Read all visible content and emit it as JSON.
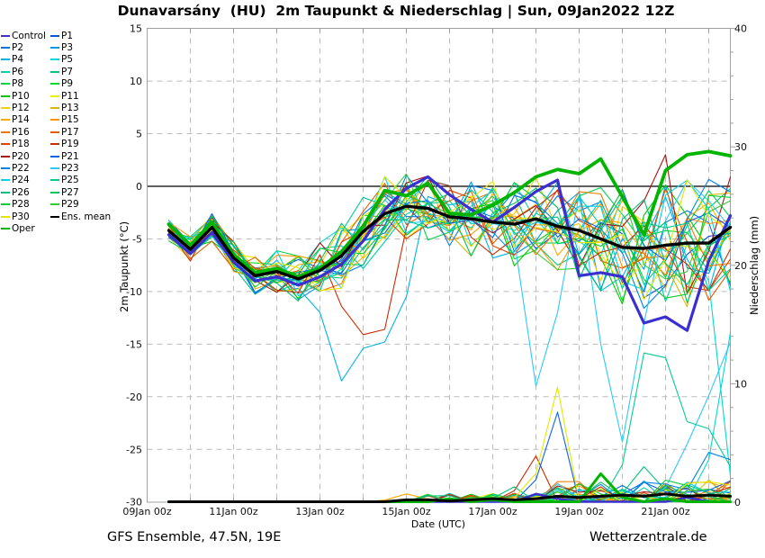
{
  "footer": {
    "model": "GFS Ensemble, 47.5N, 19E",
    "site": "Wetterzentrale.de"
  },
  "chart_data": {
    "type": "line",
    "title": "Dunavarsány  (HU)  2m Taupunkt & Niederschlag | Sun, 09Jan2022 12Z",
    "xlabel": "Date (UTC)",
    "ylabel_left": "2m Taupunkt (°C)",
    "ylabel_right": "Niederschlag (mm)",
    "x_axis": {
      "start_day": 0,
      "end_day": 13.5,
      "gridline_every_days": 1
    },
    "x_ticks": [
      {
        "day": 0,
        "label": "09Jan 00z"
      },
      {
        "day": 2,
        "label": "11Jan 00z"
      },
      {
        "day": 4,
        "label": "13Jan 00z"
      },
      {
        "day": 6,
        "label": "15Jan 00z"
      },
      {
        "day": 8,
        "label": "17Jan 00z"
      },
      {
        "day": 10,
        "label": "19Jan 00z"
      },
      {
        "day": 12,
        "label": "21Jan 00z"
      }
    ],
    "ylim_left": [
      -30,
      15
    ],
    "yticks_left": [
      15,
      10,
      5,
      0,
      -5,
      -10,
      -15,
      -20,
      -25,
      -30
    ],
    "ylim_right": [
      0,
      40
    ],
    "yticks_right": [
      40,
      30,
      20,
      10,
      0
    ],
    "zero_line_temp": 0,
    "grid_on": true,
    "legend_position": "top-left",
    "x_days": [
      0.5,
      1,
      1.5,
      2,
      2.5,
      3,
      3.5,
      4,
      4.5,
      5,
      5.5,
      6,
      6.5,
      7,
      7.5,
      8,
      8.5,
      9,
      9.5,
      10,
      10.5,
      11,
      11.5,
      12,
      12.5,
      13,
      13.5
    ],
    "series": {
      "mean": {
        "label": "Ens. mean",
        "color": "#000000",
        "width": 3.4,
        "dew": [
          -4.2,
          -6.0,
          -3.9,
          -6.8,
          -8.5,
          -8.1,
          -8.8,
          -8.0,
          -6.6,
          -4.3,
          -2.6,
          -1.9,
          -2.1,
          -2.9,
          -3.1,
          -3.4,
          -3.6,
          -3.1,
          -3.8,
          -4.2,
          -5.0,
          -5.8,
          -5.9,
          -5.6,
          -5.4,
          -5.4,
          -3.9
        ],
        "precip": [
          0,
          0,
          0,
          0,
          0,
          0,
          0,
          0,
          0,
          0,
          0,
          0.2,
          0.2,
          0.1,
          0.2,
          0.3,
          0.2,
          0.3,
          0.5,
          0.4,
          0.5,
          0.6,
          0.5,
          0.7,
          0.5,
          0.6,
          0.5
        ]
      },
      "oper": {
        "label": "Oper",
        "color": "#00b400",
        "width": 3.8,
        "dew": [
          -3.6,
          -5.6,
          -3.4,
          -6.5,
          -8.2,
          -7.8,
          -8.6,
          -7.8,
          -6.2,
          -3.8,
          -0.4,
          -0.9,
          0.3,
          -2.6,
          -2.7,
          -1.8,
          -0.6,
          0.9,
          1.6,
          1.2,
          2.6,
          -1.0,
          -4.6,
          1.5,
          3.0,
          3.3,
          2.9
        ],
        "precip": [
          0,
          0,
          0,
          0,
          0,
          0,
          0,
          0,
          0,
          0,
          0,
          0,
          0,
          0.3,
          0,
          0.2,
          0,
          0,
          0,
          0,
          2.4,
          0.4,
          0,
          0.3,
          0,
          0,
          0
        ]
      },
      "control": {
        "label": "Control",
        "color": "#3a2fd0",
        "width": 3.2,
        "dew": [
          -4.6,
          -6.4,
          -4.4,
          -7.2,
          -9.0,
          -8.6,
          -9.4,
          -8.6,
          -7.4,
          -5.2,
          -2.2,
          -0.2,
          0.9,
          -0.8,
          -2.2,
          -3.4,
          -2.0,
          -0.5,
          0.6,
          -8.5,
          -8.2,
          -8.6,
          -13.0,
          -12.4,
          -13.7,
          -7.1,
          -2.8
        ],
        "precip": [
          0,
          0,
          0,
          0,
          0,
          0,
          0,
          0,
          0,
          0,
          0,
          0,
          0,
          0,
          0,
          0,
          0,
          0.7,
          0.3,
          0,
          0,
          0,
          0,
          0,
          0.4,
          0,
          0
        ]
      }
    },
    "member_spread": [
      0.9,
      1.1,
      1.2,
      1.4,
      1.6,
      1.8,
      2.0,
      2.4,
      2.8,
      3.2,
      3.2,
      2.8,
      2.8,
      3.0,
      3.2,
      3.5,
      3.6,
      3.6,
      3.8,
      4.2,
      4.5,
      5.0,
      5.2,
      5.2,
      5.5,
      5.5,
      5.5
    ],
    "members": [
      {
        "name": "P1",
        "color": "#0a50e6"
      },
      {
        "name": "P2",
        "color": "#0572e0"
      },
      {
        "name": "P3",
        "color": "#0099e6"
      },
      {
        "name": "P4",
        "color": "#00b4e8",
        "dewfix": {
          "4": -12.0,
          "4.5": -18.5,
          "5": -15.4,
          "5.5": -14.8,
          "6": -10.5
        }
      },
      {
        "name": "P5",
        "color": "#00d8dc",
        "dewfix": {
          "13": -9.0,
          "13.5": -27.5
        },
        "spikes": [
          [
            13.5,
            14.3
          ]
        ]
      },
      {
        "name": "P6",
        "color": "#00d2a8"
      },
      {
        "name": "P7",
        "color": "#00c878",
        "spikes": [
          [
            11.5,
            3.0
          ],
          [
            12,
            1.0
          ]
        ]
      },
      {
        "name": "P8",
        "color": "#00d24a"
      },
      {
        "name": "P9",
        "color": "#06dc2a"
      },
      {
        "name": "P10",
        "color": "#00c800"
      },
      {
        "name": "P11",
        "color": "#eeee00"
      },
      {
        "name": "P12",
        "color": "#eed200"
      },
      {
        "name": "P13",
        "color": "#e0b400"
      },
      {
        "name": "P14",
        "color": "#ffa800",
        "spikes": [
          [
            6,
            0.7
          ]
        ]
      },
      {
        "name": "P15",
        "color": "#ff9600"
      },
      {
        "name": "P16",
        "color": "#f07800"
      },
      {
        "name": "P17",
        "color": "#e06000"
      },
      {
        "name": "P18",
        "color": "#e04400"
      },
      {
        "name": "P19",
        "color": "#cd2a00",
        "dewfix": {
          "4.5": -11.4,
          "5": -14.1,
          "5.5": -13.6
        },
        "spikes": [
          [
            9,
            3.9
          ]
        ]
      },
      {
        "name": "P20",
        "color": "#a81414",
        "dewfix": {
          "12": 3.0
        }
      },
      {
        "name": "P21",
        "color": "#0a64e6",
        "spikes": [
          [
            9.5,
            7.6
          ]
        ]
      },
      {
        "name": "P22",
        "color": "#0082e6",
        "spikes": [
          [
            13,
            4.2
          ],
          [
            13.5,
            3.6
          ]
        ]
      },
      {
        "name": "P23",
        "color": "#2cc8ff",
        "dewfix": {
          "9": -19.0,
          "9.5": -12.0,
          "10.5": -15.0,
          "11": -24.3,
          "11.5": -13.0
        },
        "spikes": [
          [
            12.5,
            4.9
          ],
          [
            13,
            9.0
          ],
          [
            13.5,
            13.5
          ]
        ]
      },
      {
        "name": "P24",
        "color": "#00d2e6"
      },
      {
        "name": "P25",
        "color": "#00cd96",
        "spikes": [
          [
            11.5,
            12.6
          ],
          [
            12,
            12.2
          ],
          [
            12.5,
            6.8
          ],
          [
            13,
            6.2
          ],
          [
            13.5,
            3.0
          ]
        ]
      },
      {
        "name": "P26",
        "color": "#00be7d",
        "spikes": [
          [
            8.5,
            1.3
          ]
        ]
      },
      {
        "name": "P27",
        "color": "#00c35a"
      },
      {
        "name": "P28",
        "color": "#0ccd32"
      },
      {
        "name": "P29",
        "color": "#32cd32"
      },
      {
        "name": "P30",
        "color": "#e6e600",
        "spikes": [
          [
            9,
            1.5
          ],
          [
            9.5,
            9.7
          ]
        ]
      }
    ],
    "legend": [
      {
        "label": "Control",
        "color": "#3a2fd0"
      },
      {
        "label": "P1",
        "color": "#0a50e6"
      },
      {
        "label": "P2",
        "color": "#0572e0"
      },
      {
        "label": "P3",
        "color": "#0099e6"
      },
      {
        "label": "P4",
        "color": "#00b4e8"
      },
      {
        "label": "P5",
        "color": "#00d8dc"
      },
      {
        "label": "P6",
        "color": "#00d2a8"
      },
      {
        "label": "P7",
        "color": "#00c878"
      },
      {
        "label": "P8",
        "color": "#00d24a"
      },
      {
        "label": "P9",
        "color": "#06dc2a"
      },
      {
        "label": "P10",
        "color": "#00c800"
      },
      {
        "label": "P11",
        "color": "#eeee00"
      },
      {
        "label": "P12",
        "color": "#eed200"
      },
      {
        "label": "P13",
        "color": "#e0b400"
      },
      {
        "label": "P14",
        "color": "#ffa800"
      },
      {
        "label": "P15",
        "color": "#ff9600"
      },
      {
        "label": "P16",
        "color": "#f07800"
      },
      {
        "label": "P17",
        "color": "#e06000"
      },
      {
        "label": "P18",
        "color": "#e04400"
      },
      {
        "label": "P19",
        "color": "#cd2a00"
      },
      {
        "label": "P20",
        "color": "#a81414"
      },
      {
        "label": "P21",
        "color": "#0a64e6"
      },
      {
        "label": "P22",
        "color": "#0082e6"
      },
      {
        "label": "P23",
        "color": "#2cc8ff"
      },
      {
        "label": "P24",
        "color": "#00d2e6"
      },
      {
        "label": "P25",
        "color": "#00cd96"
      },
      {
        "label": "P26",
        "color": "#00be7d"
      },
      {
        "label": "P27",
        "color": "#00c35a"
      },
      {
        "label": "P28",
        "color": "#0ccd32"
      },
      {
        "label": "P29",
        "color": "#32cd32"
      },
      {
        "label": "P30",
        "color": "#e6e600"
      },
      {
        "label": "Ens. mean",
        "color": "#000000"
      },
      {
        "label": "Oper",
        "color": "#00b400"
      }
    ],
    "colors": {
      "grid": "#bcbcbc",
      "frame": "#a0a0a0",
      "zero_line": "#000000",
      "tick_text": "#111111"
    }
  }
}
